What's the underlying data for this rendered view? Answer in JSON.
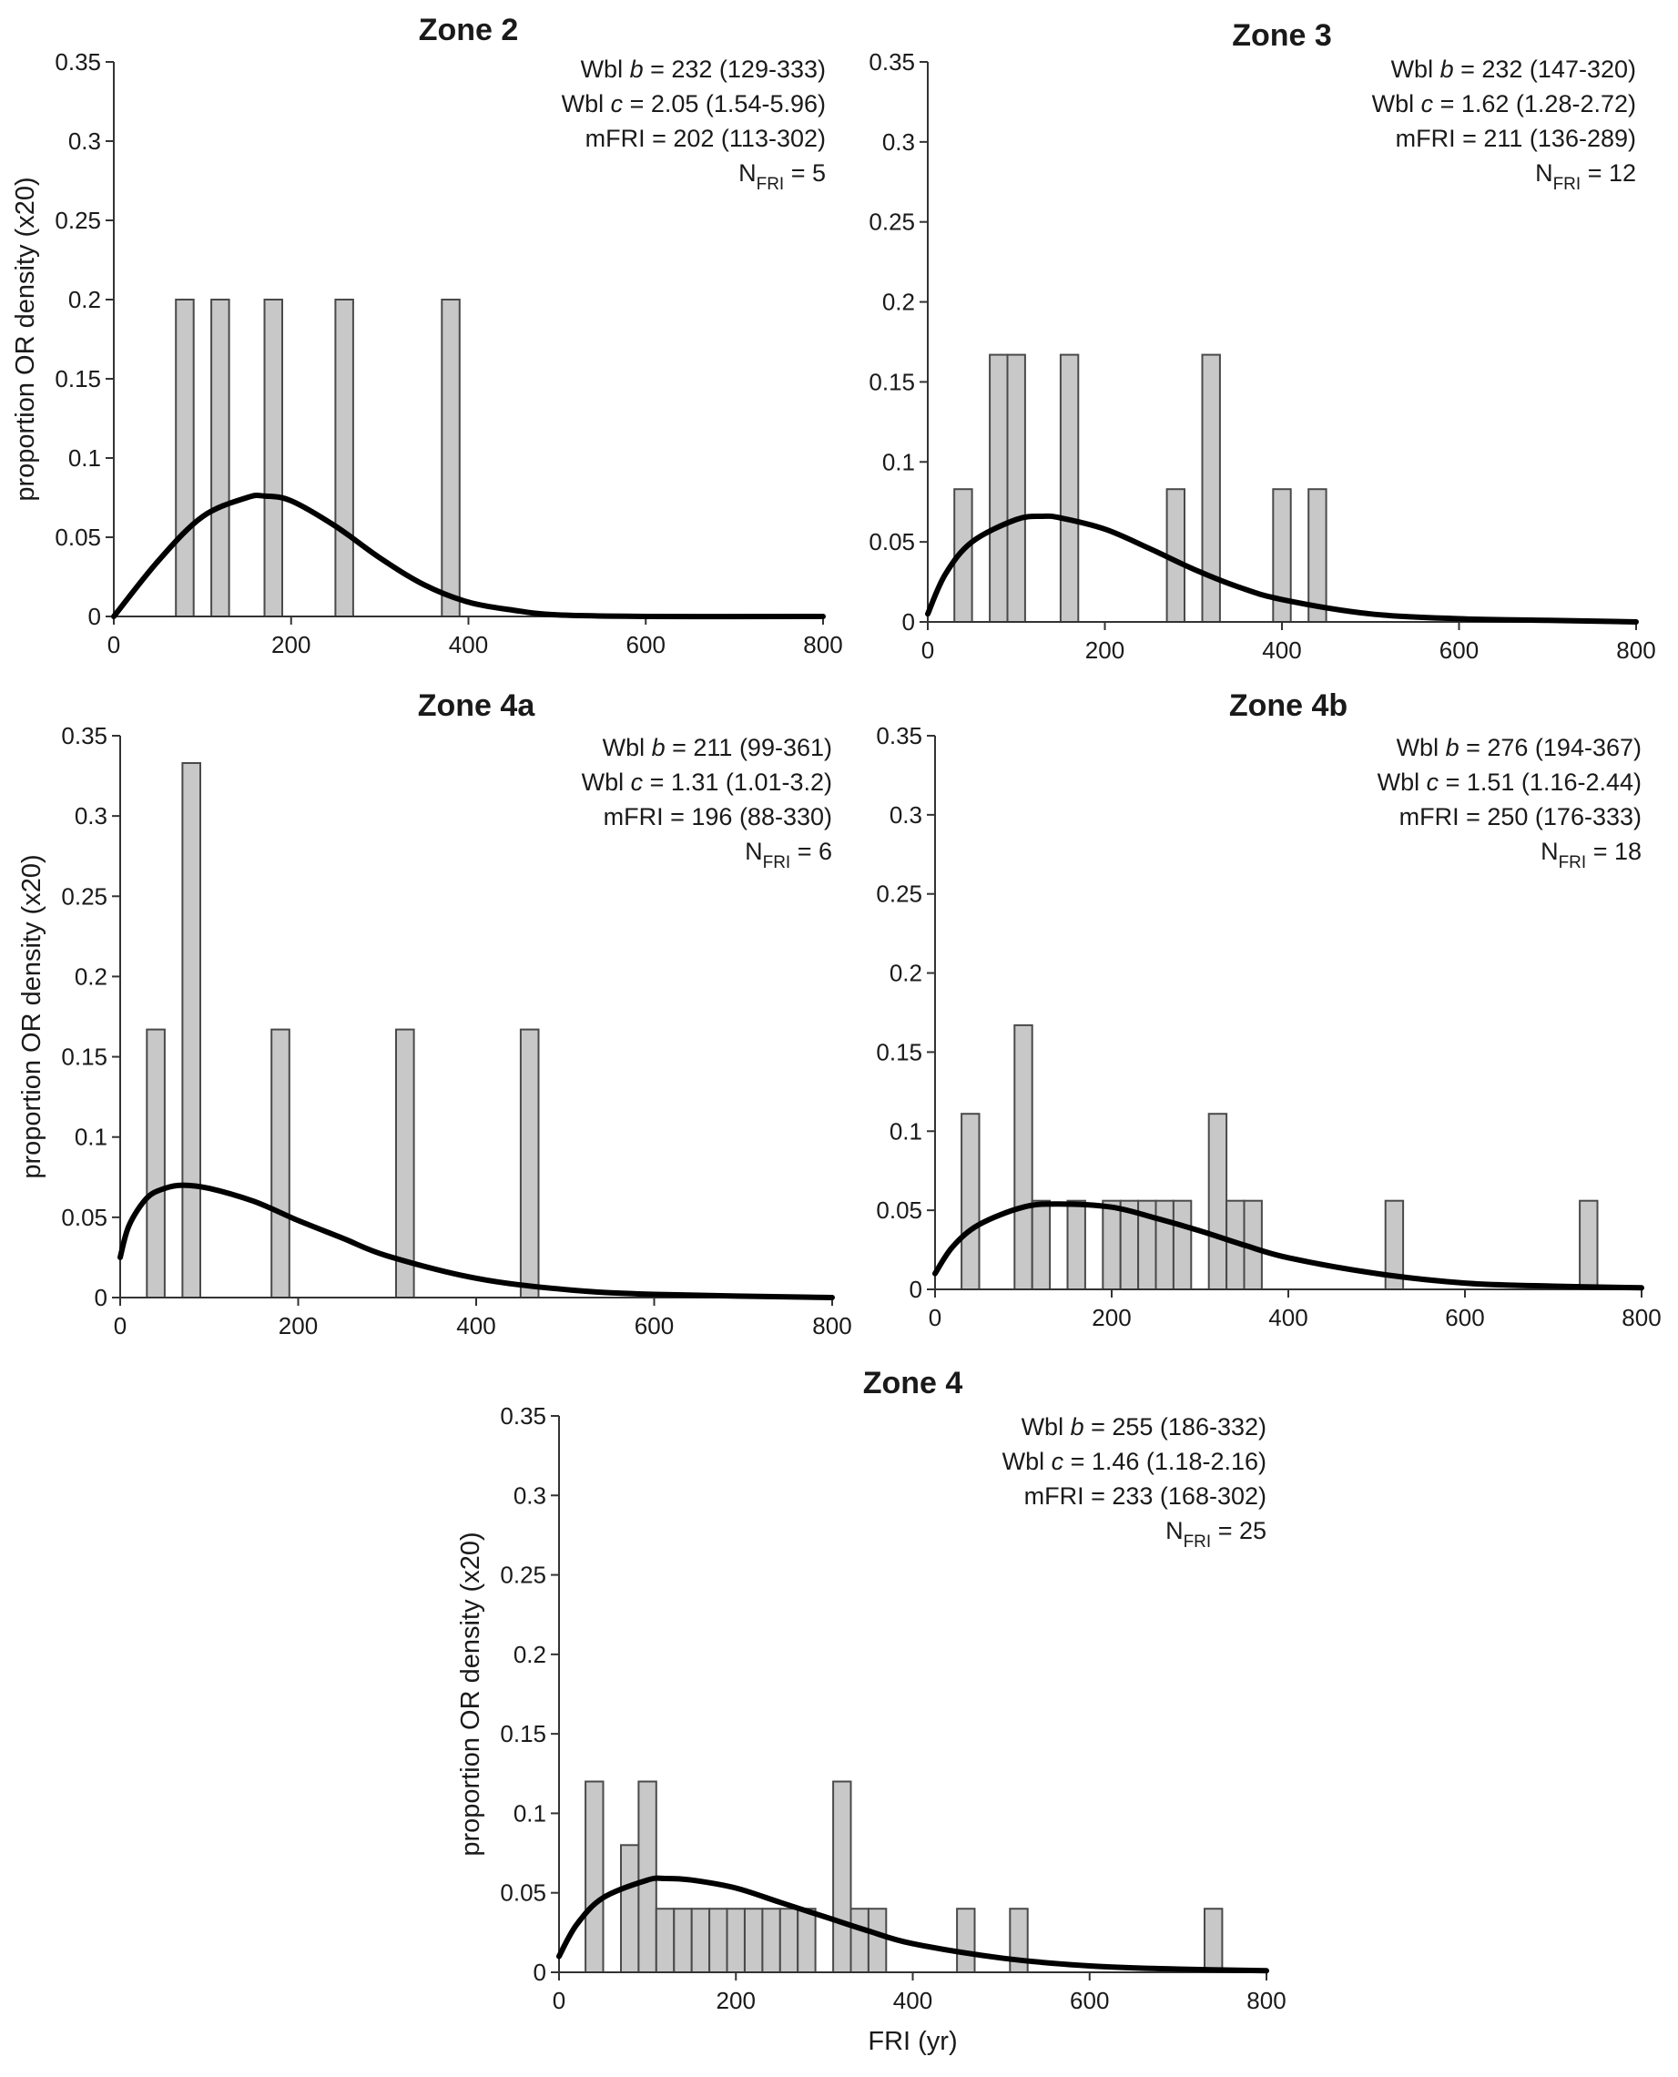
{
  "colors": {
    "bar_fill": "#c8c8c8",
    "bar_stroke": "#4a4a4a",
    "curve": "#000000",
    "axis": "#333333"
  },
  "chart_data": [
    {
      "type": "bar",
      "title": "Zone 2",
      "ylabel": "proportion OR density (x20)",
      "xlabel": "",
      "xlim": [
        0,
        800
      ],
      "ylim": [
        0,
        0.35
      ],
      "xticks": [
        "0",
        "200",
        "400",
        "600",
        "800"
      ],
      "yticks": [
        "0",
        "0.05",
        "0.1",
        "0.15",
        "0.2",
        "0.25",
        "0.3",
        "0.35"
      ],
      "bars": [
        {
          "x": 80,
          "value": 0.2
        },
        {
          "x": 120,
          "value": 0.2
        },
        {
          "x": 180,
          "value": 0.2
        },
        {
          "x": 260,
          "value": 0.2
        },
        {
          "x": 380,
          "value": 0.2
        }
      ],
      "curve": {
        "name": "Weibull density",
        "b": 232,
        "c": 2.05,
        "values_at": [
          0,
          50,
          100,
          150,
          170,
          200,
          250,
          300,
          350,
          400,
          450,
          500,
          600,
          800
        ],
        "y": [
          0,
          0.035,
          0.063,
          0.075,
          0.076,
          0.073,
          0.057,
          0.037,
          0.02,
          0.009,
          0.004,
          0.001,
          0,
          0
        ]
      },
      "stats": [
        {
          "label": "Wbl b",
          "value": "= 232 (129-333)"
        },
        {
          "label": "Wbl c",
          "value": "= 2.05 (1.54-5.96)"
        },
        {
          "label": "mFRI",
          "value": "= 202 (113-302)"
        },
        {
          "label": "N",
          "sub": "FRI",
          "value": "= 5"
        }
      ]
    },
    {
      "type": "bar",
      "title": "Zone 3",
      "ylabel": "",
      "xlabel": "",
      "xlim": [
        0,
        800
      ],
      "ylim": [
        0,
        0.35
      ],
      "xticks": [
        "0",
        "200",
        "400",
        "600",
        "800"
      ],
      "yticks": [
        "0",
        "0.05",
        "0.1",
        "0.15",
        "0.2",
        "0.25",
        "0.3",
        "0.35"
      ],
      "bars": [
        {
          "x": 40,
          "value": 0.083
        },
        {
          "x": 80,
          "value": 0.167
        },
        {
          "x": 100,
          "value": 0.167
        },
        {
          "x": 160,
          "value": 0.167
        },
        {
          "x": 280,
          "value": 0.083
        },
        {
          "x": 320,
          "value": 0.167
        },
        {
          "x": 400,
          "value": 0.083
        },
        {
          "x": 440,
          "value": 0.083
        }
      ],
      "curve": {
        "name": "Weibull density",
        "b": 232,
        "c": 1.62,
        "values_at": [
          0,
          20,
          50,
          100,
          130,
          150,
          200,
          250,
          300,
          350,
          400,
          500,
          600,
          700,
          800
        ],
        "y": [
          0.005,
          0.03,
          0.05,
          0.064,
          0.066,
          0.065,
          0.058,
          0.046,
          0.033,
          0.022,
          0.014,
          0.005,
          0.002,
          0.001,
          0
        ]
      },
      "stats": [
        {
          "label": "Wbl b",
          "value": "= 232 (147-320)"
        },
        {
          "label": "Wbl c",
          "value": "= 1.62 (1.28-2.72)"
        },
        {
          "label": "mFRI",
          "value": "= 211 (136-289)"
        },
        {
          "label": "N",
          "sub": "FRI",
          "value": "= 12"
        }
      ]
    },
    {
      "type": "bar",
      "title": "Zone 4a",
      "ylabel": "proportion OR density (x20)",
      "xlabel": "",
      "xlim": [
        0,
        800
      ],
      "ylim": [
        0,
        0.35
      ],
      "xticks": [
        "0",
        "200",
        "400",
        "600",
        "800"
      ],
      "yticks": [
        "0",
        "0.05",
        "0.1",
        "0.15",
        "0.2",
        "0.25",
        "0.3",
        "0.35"
      ],
      "bars": [
        {
          "x": 40,
          "value": 0.167
        },
        {
          "x": 80,
          "value": 0.333
        },
        {
          "x": 180,
          "value": 0.167
        },
        {
          "x": 320,
          "value": 0.167
        },
        {
          "x": 460,
          "value": 0.167
        }
      ],
      "curve": {
        "name": "Weibull density",
        "b": 211,
        "c": 1.31,
        "values_at": [
          0,
          10,
          30,
          50,
          70,
          100,
          150,
          200,
          250,
          300,
          400,
          500,
          600,
          800
        ],
        "y": [
          0.025,
          0.045,
          0.062,
          0.068,
          0.07,
          0.068,
          0.06,
          0.048,
          0.037,
          0.026,
          0.012,
          0.005,
          0.002,
          0
        ]
      },
      "stats": [
        {
          "label": "Wbl b",
          "value": "= 211 (99-361)"
        },
        {
          "label": "Wbl c",
          "value": "= 1.31 (1.01-3.2)"
        },
        {
          "label": "mFRI",
          "value": "= 196 (88-330)"
        },
        {
          "label": "N",
          "sub": "FRI",
          "value": "= 6"
        }
      ]
    },
    {
      "type": "bar",
      "title": "Zone 4b",
      "ylabel": "",
      "xlabel": "",
      "xlim": [
        0,
        800
      ],
      "ylim": [
        0,
        0.35
      ],
      "xticks": [
        "0",
        "200",
        "400",
        "600",
        "800"
      ],
      "yticks": [
        "0",
        "0.05",
        "0.1",
        "0.15",
        "0.2",
        "0.25",
        "0.3",
        "0.35"
      ],
      "bars": [
        {
          "x": 40,
          "value": 0.111
        },
        {
          "x": 100,
          "value": 0.167
        },
        {
          "x": 120,
          "value": 0.056
        },
        {
          "x": 160,
          "value": 0.056
        },
        {
          "x": 200,
          "value": 0.056
        },
        {
          "x": 220,
          "value": 0.056
        },
        {
          "x": 240,
          "value": 0.056
        },
        {
          "x": 260,
          "value": 0.056
        },
        {
          "x": 280,
          "value": 0.056
        },
        {
          "x": 320,
          "value": 0.111
        },
        {
          "x": 340,
          "value": 0.056
        },
        {
          "x": 360,
          "value": 0.056
        },
        {
          "x": 520,
          "value": 0.056
        },
        {
          "x": 740,
          "value": 0.056
        }
      ],
      "curve": {
        "name": "Weibull density",
        "b": 276,
        "c": 1.51,
        "values_at": [
          0,
          20,
          50,
          100,
          140,
          200,
          250,
          300,
          350,
          400,
          500,
          600,
          700,
          800
        ],
        "y": [
          0.01,
          0.027,
          0.041,
          0.052,
          0.054,
          0.052,
          0.045,
          0.037,
          0.028,
          0.02,
          0.01,
          0.004,
          0.002,
          0.001
        ]
      },
      "stats": [
        {
          "label": "Wbl b",
          "value": "= 276 (194-367)"
        },
        {
          "label": "Wbl c",
          "value": "= 1.51 (1.16-2.44)"
        },
        {
          "label": "mFRI",
          "value": "= 250 (176-333)"
        },
        {
          "label": "N",
          "sub": "FRI",
          "value": "= 18"
        }
      ]
    },
    {
      "type": "bar",
      "title": "Zone 4",
      "ylabel": "proportion OR density (x20)",
      "xlabel": "FRI (yr)",
      "xlim": [
        0,
        800
      ],
      "ylim": [
        0,
        0.35
      ],
      "xticks": [
        "0",
        "200",
        "400",
        "600",
        "800"
      ],
      "yticks": [
        "0",
        "0.05",
        "0.1",
        "0.15",
        "0.2",
        "0.25",
        "0.3",
        "0.35"
      ],
      "bars": [
        {
          "x": 40,
          "value": 0.12
        },
        {
          "x": 80,
          "value": 0.08
        },
        {
          "x": 100,
          "value": 0.12
        },
        {
          "x": 120,
          "value": 0.04
        },
        {
          "x": 140,
          "value": 0.04
        },
        {
          "x": 160,
          "value": 0.04
        },
        {
          "x": 180,
          "value": 0.04
        },
        {
          "x": 200,
          "value": 0.04
        },
        {
          "x": 220,
          "value": 0.04
        },
        {
          "x": 240,
          "value": 0.04
        },
        {
          "x": 260,
          "value": 0.04
        },
        {
          "x": 280,
          "value": 0.04
        },
        {
          "x": 320,
          "value": 0.12
        },
        {
          "x": 340,
          "value": 0.04
        },
        {
          "x": 360,
          "value": 0.04
        },
        {
          "x": 460,
          "value": 0.04
        },
        {
          "x": 520,
          "value": 0.04
        },
        {
          "x": 740,
          "value": 0.04
        }
      ],
      "curve": {
        "name": "Weibull density",
        "b": 255,
        "c": 1.46,
        "values_at": [
          0,
          20,
          50,
          100,
          120,
          150,
          200,
          250,
          300,
          350,
          400,
          500,
          600,
          700,
          800
        ],
        "y": [
          0.01,
          0.03,
          0.047,
          0.058,
          0.059,
          0.058,
          0.053,
          0.044,
          0.035,
          0.026,
          0.018,
          0.009,
          0.004,
          0.002,
          0.001
        ]
      },
      "stats": [
        {
          "label": "Wbl b",
          "value": "= 255 (186-332)"
        },
        {
          "label": "Wbl c",
          "value": "= 1.46 (1.18-2.16)"
        },
        {
          "label": "mFRI",
          "value": "= 233 (168-302)"
        },
        {
          "label": "N",
          "sub": "FRI",
          "value": "= 25"
        }
      ]
    }
  ]
}
